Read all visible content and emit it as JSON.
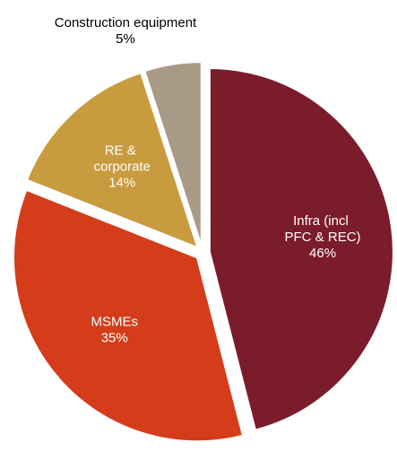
{
  "chart_data": {
    "type": "pie",
    "categories": [
      "Infra (incl PFC & REC)",
      "MSMEs",
      "RE & corporate",
      "Construction equipment"
    ],
    "values": [
      46,
      35,
      14,
      5
    ],
    "value_labels": [
      "46%",
      "35%",
      "14%",
      "5%"
    ],
    "colors": [
      "#7b1c2b",
      "#d43c1a",
      "#c89b3e",
      "#a99a87"
    ]
  }
}
